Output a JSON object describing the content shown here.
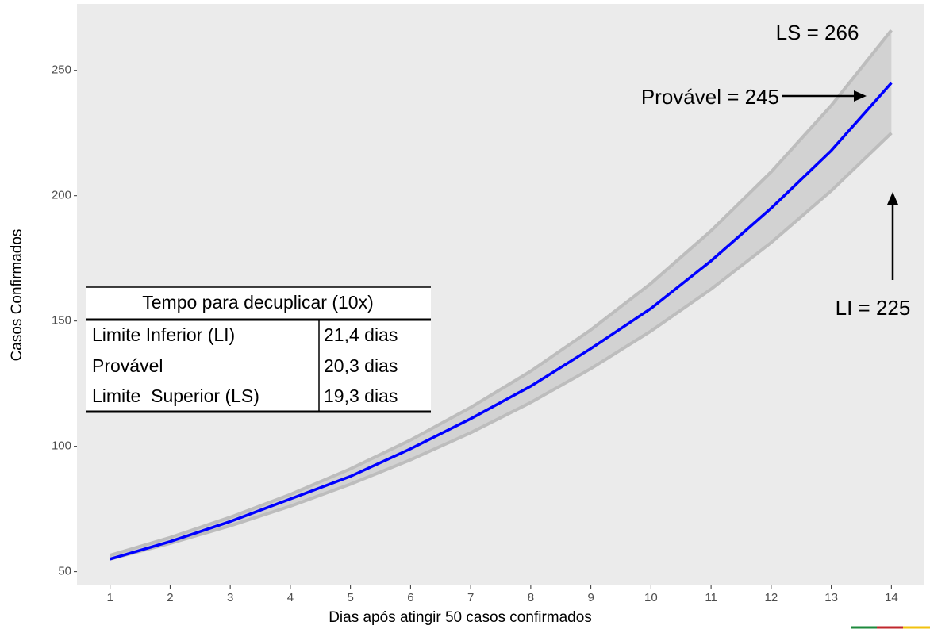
{
  "chart_data": {
    "type": "ribbon-line",
    "x_label": "Dias após atingir 50 casos confirmados",
    "y_label": "Casos Confirmados",
    "x": [
      1,
      2,
      3,
      4,
      5,
      6,
      7,
      8,
      9,
      10,
      11,
      12,
      13,
      14
    ],
    "line": {
      "color": "#0000ff",
      "values": [
        55,
        62,
        70,
        79,
        88,
        99,
        111,
        124,
        139,
        155,
        174,
        195,
        218,
        245
      ]
    },
    "band": {
      "color": "#bdbdbd",
      "upper": [
        56.5,
        63.6,
        71.7,
        80.8,
        91,
        102.5,
        115.5,
        130,
        146.5,
        165,
        186,
        209.5,
        236,
        266
      ],
      "lower": [
        55,
        61.3,
        68.3,
        76.1,
        84.9,
        94.6,
        105.4,
        117.5,
        131,
        146,
        162.7,
        181.3,
        202,
        225
      ]
    },
    "xlim": [
      0.45,
      14.55
    ],
    "ylim": [
      44.5,
      276.5
    ],
    "xticks": [
      1,
      2,
      3,
      4,
      5,
      6,
      7,
      8,
      9,
      10,
      11,
      12,
      13,
      14
    ],
    "yticks": [
      50,
      100,
      150,
      200,
      250
    ],
    "y_minor_grid": [
      75,
      125,
      175,
      225,
      275
    ],
    "grid": true,
    "annotations": [
      {
        "text": "LS = 266"
      },
      {
        "text": "Provável = 245"
      },
      {
        "text": "LI = 225"
      }
    ]
  },
  "table": {
    "title": "Tempo para decuplicar (10x)",
    "rows": [
      [
        "Limite Inferior (LI)",
        "21,4 dias"
      ],
      [
        "Provável",
        "20,3 dias"
      ],
      [
        "Limite  Superior (LS)",
        "19,3 dias"
      ]
    ]
  }
}
